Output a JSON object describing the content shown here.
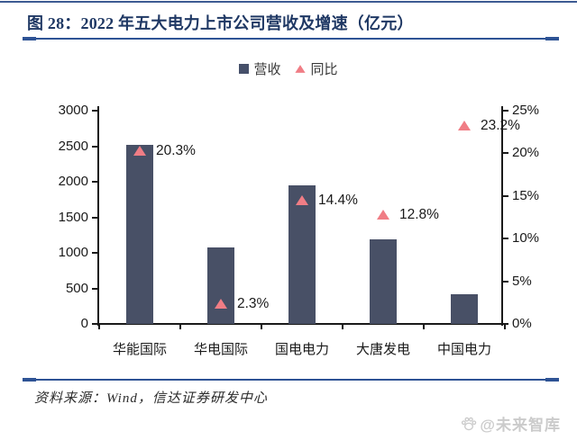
{
  "figure": {
    "title": "图 28：2022 年五大电力上市公司营收及增速（亿元）",
    "source": "资料来源：Wind，信达证券研发中心",
    "watermark": "@未来智库"
  },
  "legend": [
    {
      "label": "营收",
      "marker": "square",
      "color": "#485066"
    },
    {
      "label": "同比",
      "marker": "triangle",
      "color": "#f07d85"
    }
  ],
  "chart_data": {
    "type": "bar",
    "title": "2022 年五大电力上市公司营收及增速（亿元）",
    "categories": [
      "华能国际",
      "华电国际",
      "国电电力",
      "大唐发电",
      "中国电力"
    ],
    "series": [
      {
        "name": "营收",
        "type": "bar",
        "axis": "left",
        "unit": "亿元",
        "values": [
          2520,
          1070,
          1950,
          1190,
          420
        ]
      },
      {
        "name": "同比",
        "type": "scatter",
        "axis": "right",
        "unit": "%",
        "values": [
          20.3,
          2.3,
          14.4,
          12.8,
          23.2
        ],
        "labels": [
          "20.3%",
          "2.3%",
          "14.4%",
          "12.8%",
          "23.2%"
        ]
      }
    ],
    "left_axis": {
      "min": 0,
      "max": 3000,
      "ticks": [
        "3000",
        "2500",
        "2000",
        "1500",
        "1000",
        "500",
        "0"
      ]
    },
    "right_axis": {
      "min": 0,
      "max": 25,
      "ticks": [
        "25%",
        "20%",
        "15%",
        "10%",
        "5%",
        "0%"
      ]
    },
    "grid": false,
    "legend_position": "top-center"
  },
  "colors": {
    "bar": "#485066",
    "triangle": "#f07d85",
    "title_navy": "#1f3864",
    "rule_navy": "#2e5395",
    "axis_text": "#1a1a1a",
    "watermark_gray": "#cbcbcb"
  }
}
